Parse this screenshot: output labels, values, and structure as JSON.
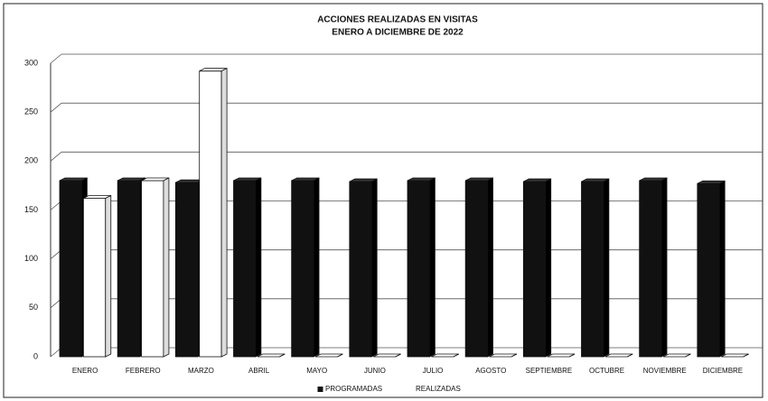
{
  "chart_data": {
    "type": "bar",
    "title": "ACCIONES REALIZADAS EN VISITAS",
    "subtitle": "ENERO A DICIEMBRE DE 2022",
    "categories": [
      "ENERO",
      "FEBRERO",
      "MARZO",
      "ABRIL",
      "MAYO",
      "JUNIO",
      "JULIO",
      "AGOSTO",
      "SEPTIEMBRE",
      "OCTUBRE",
      "NOVIEMBRE",
      "DICIEMBRE"
    ],
    "series": [
      {
        "name": "PROGRAMADAS",
        "color": "#111111",
        "values": [
          180,
          180,
          178,
          180,
          180,
          179,
          180,
          180,
          179,
          179,
          180,
          177
        ]
      },
      {
        "name": "REALIZADAS",
        "color": "#ffffff",
        "values": [
          162,
          180,
          292,
          0,
          0,
          0,
          0,
          0,
          0,
          0,
          0,
          0
        ]
      }
    ],
    "ylim": [
      0,
      300
    ],
    "yticks": [
      0,
      50,
      100,
      150,
      200,
      250,
      300
    ],
    "grid": true,
    "legend": "bottom"
  }
}
